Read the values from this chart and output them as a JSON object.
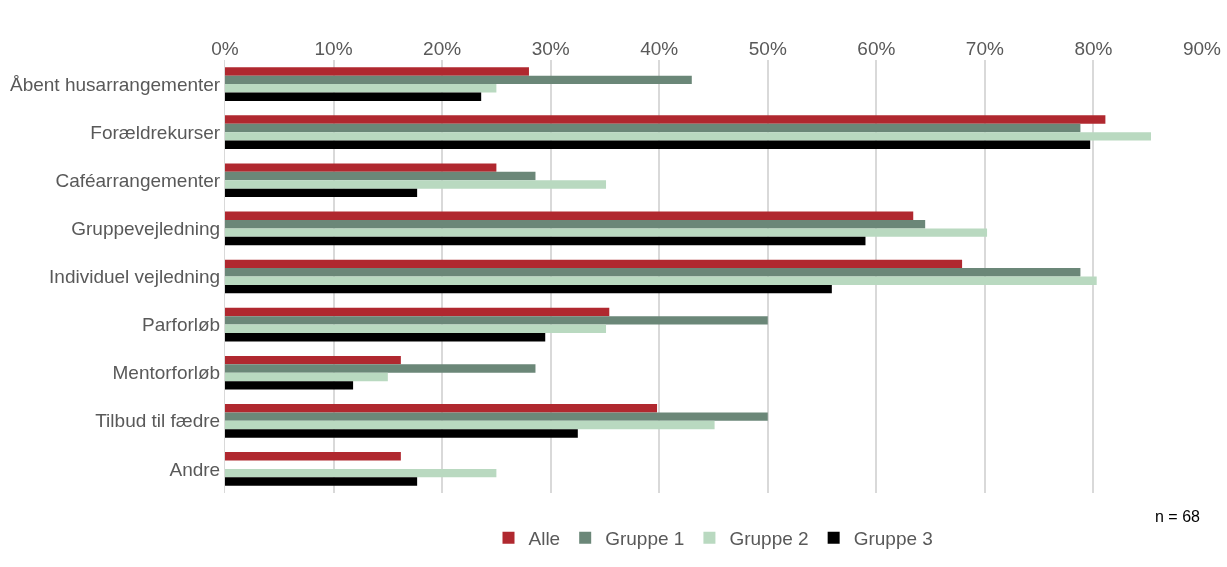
{
  "chart_data": {
    "type": "bar",
    "orientation": "horizontal",
    "categories": [
      "Åbent husarrangementer",
      "Forældrekurser",
      "Caféarrangementer",
      "Gruppevejledning",
      "Individuel vejledning",
      "Parforløb",
      "Mentorforløb",
      "Tilbud til fædre",
      "Andre"
    ],
    "series": [
      {
        "name": "Alle",
        "color": "#b0282f",
        "values": [
          28.0,
          81.1,
          25.0,
          63.4,
          67.9,
          35.4,
          16.2,
          39.8,
          16.2
        ]
      },
      {
        "name": "Gruppe 1",
        "color": "#6b8778",
        "values": [
          43.0,
          78.8,
          28.6,
          64.5,
          78.8,
          50.0,
          28.6,
          50.0,
          0
        ]
      },
      {
        "name": "Gruppe 2",
        "color": "#b9d9c0",
        "values": [
          25.0,
          85.3,
          35.1,
          70.2,
          80.3,
          35.1,
          15.0,
          45.1,
          25.0
        ]
      },
      {
        "name": "Gruppe 3",
        "color": "#000000",
        "values": [
          23.6,
          79.7,
          17.7,
          59.0,
          55.9,
          29.5,
          11.8,
          32.5,
          17.7
        ]
      }
    ],
    "xlim": [
      0,
      90
    ],
    "xticks": [
      {
        "value": 0,
        "label": "0%"
      },
      {
        "value": 10,
        "label": "10%"
      },
      {
        "value": 20,
        "label": "20%"
      },
      {
        "value": 30,
        "label": "30%"
      },
      {
        "value": 40,
        "label": "40%"
      },
      {
        "value": 50,
        "label": "50%"
      },
      {
        "value": 60,
        "label": "60%"
      },
      {
        "value": 70,
        "label": "70%"
      },
      {
        "value": 80,
        "label": "80%"
      },
      {
        "value": 90,
        "label": "90%"
      }
    ],
    "grid": "x",
    "legend": "bottom",
    "annotations": [
      "n = 68"
    ]
  }
}
